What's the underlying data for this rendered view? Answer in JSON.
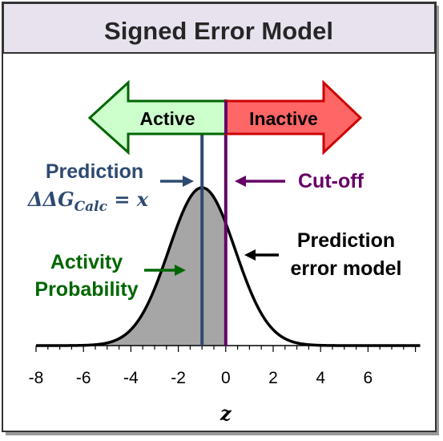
{
  "title": "Signed Error Model",
  "arrows": {
    "active_label": "Active",
    "inactive_label": "Inactive",
    "active_fill": "#ccffcc",
    "active_stroke": "#006600",
    "inactive_fill": "#ff6666",
    "inactive_stroke": "#cc0000"
  },
  "annotations": {
    "prediction_label": "Prediction",
    "prediction_formula_prefix": "ΔΔG",
    "prediction_formula_subscript": "Calc",
    "prediction_formula_suffix": " = x",
    "cutoff_label": "Cut-off",
    "error_model_line1": "Prediction",
    "error_model_line2": "error model",
    "activity_line1": "Activity",
    "activity_line2": "Probability"
  },
  "colors": {
    "prediction": "#2e4a70",
    "cutoff": "#660066",
    "activity": "#006600",
    "shade": "#a6a6a6",
    "title_band": "#e8e2ee"
  },
  "axis": {
    "label": "z",
    "tick_labels": [
      "-8",
      "-6",
      "-4",
      "-2",
      "0",
      "2",
      "4",
      "6"
    ],
    "xlim": [
      -8,
      8
    ]
  },
  "curve": {
    "mean": -1,
    "sd": 1.4
  },
  "prediction_z": -1,
  "cutoff_z": 0
}
